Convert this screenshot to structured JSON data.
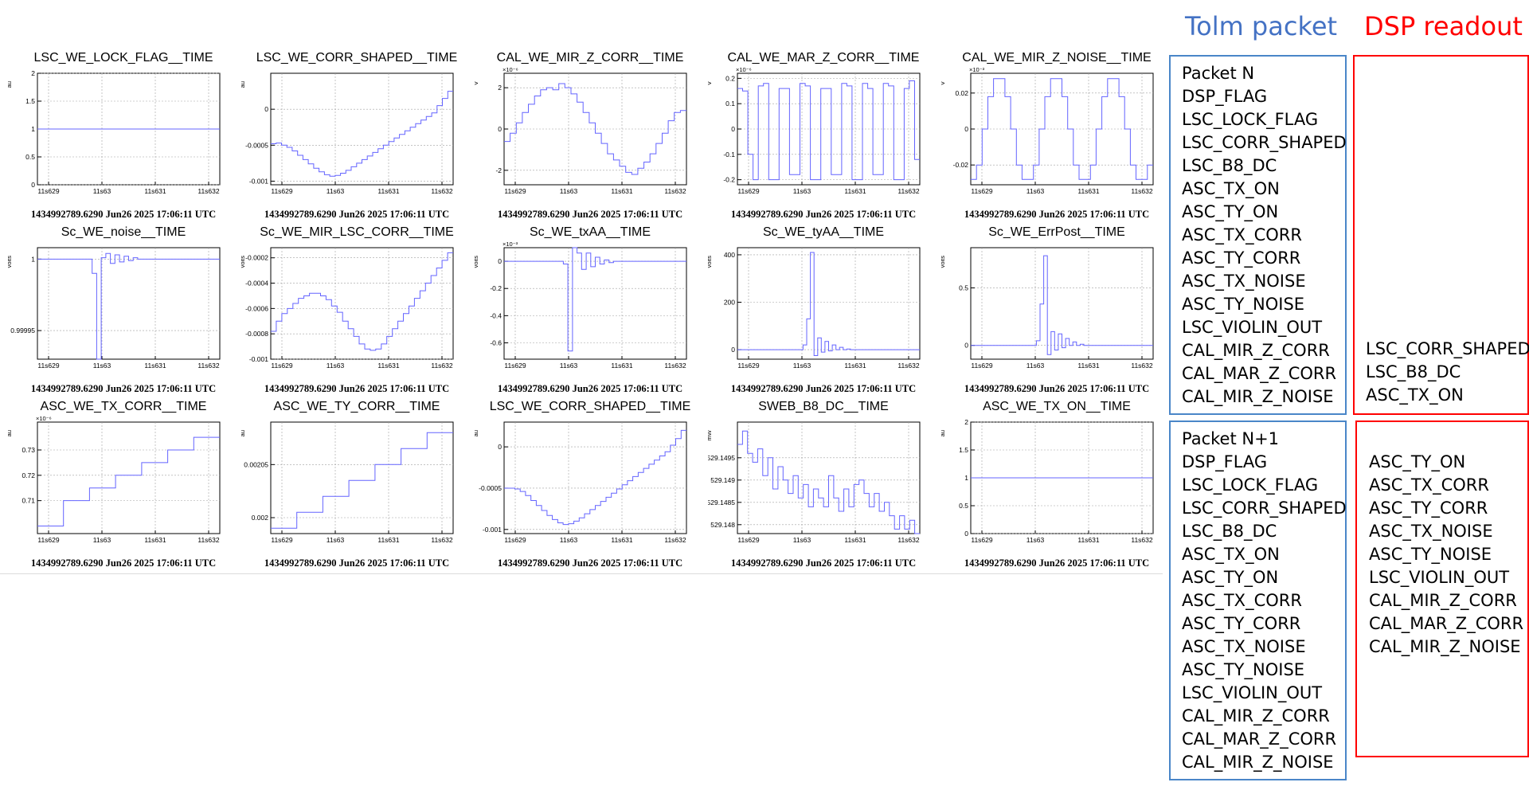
{
  "chart_data": [
    {
      "type": "line",
      "title": "LSC_WE_LOCK_FLAG__TIME",
      "ylabel": "au",
      "y_exponent": "",
      "ylim": [
        0,
        2
      ],
      "yticks": [
        0,
        0.5,
        1,
        1.5,
        2
      ],
      "ytick_labels": [
        "0",
        "0.5",
        "1",
        "1.5",
        "2"
      ],
      "xticks": [
        "11s629",
        "11s63",
        "11s631",
        "11s632"
      ],
      "footer": "1434992789.6290 Jun26 2025 17:06:11 UTC",
      "series": [
        {
          "values": [
            1,
            1,
            1,
            1,
            1,
            1,
            1,
            1,
            1,
            1,
            1,
            1,
            1,
            1,
            1,
            1,
            1,
            1,
            1,
            1,
            1,
            1,
            1,
            1,
            1,
            1,
            1,
            1,
            1,
            1,
            1,
            1,
            1,
            1,
            1,
            1,
            1,
            1,
            1,
            1,
            1,
            1,
            1,
            1,
            1,
            1,
            1,
            1,
            1,
            1
          ]
        }
      ]
    },
    {
      "type": "line",
      "title": "LSC_WE_CORR_SHAPED__TIME",
      "ylabel": "au",
      "y_exponent": "",
      "ylim": [
        -0.00105,
        0.0005
      ],
      "yticks": [
        -0.001,
        -0.0005,
        0
      ],
      "ytick_labels": [
        "-0.001",
        "-0.0005",
        "0"
      ],
      "xticks": [
        "11s629",
        "11s63",
        "11s631",
        "11s632"
      ],
      "footer": "1434992789.6290 Jun26 2025 17:06:11 UTC",
      "series": [
        {
          "values": [
            -0.00048,
            -0.00047,
            -0.0005,
            -0.00053,
            -0.00058,
            -0.00064,
            -0.0007,
            -0.00076,
            -0.00082,
            -0.00087,
            -0.00091,
            -0.00093,
            -0.00092,
            -0.00089,
            -0.00085,
            -0.0008,
            -0.00075,
            -0.0007,
            -0.00065,
            -0.0006,
            -0.00055,
            -0.0005,
            -0.00045,
            -0.0004,
            -0.00035,
            -0.0003,
            -0.00025,
            -0.0002,
            -0.00015,
            -0.0001,
            -5e-05,
            5e-05,
            0.00015,
            0.00025
          ]
        }
      ]
    },
    {
      "type": "line",
      "title": "CAL_WE_MIR_Z_CORR__TIME",
      "ylabel": "V",
      "y_exponent": "×10⁻⁶",
      "ylim": [
        -2.7,
        2.7
      ],
      "yticks": [
        -2,
        0,
        2
      ],
      "ytick_labels": [
        "-2",
        "0",
        "2"
      ],
      "xticks": [
        "11s629",
        "11s63",
        "11s631",
        "11s632"
      ],
      "footer": "1434992789.6290 Jun26 2025 17:06:11 UTC",
      "series": [
        {
          "values": [
            -0.6,
            -0.2,
            0.3,
            0.8,
            1.2,
            1.6,
            1.9,
            2.0,
            1.9,
            2.2,
            2.0,
            1.7,
            1.3,
            0.8,
            0.3,
            -0.2,
            -0.7,
            -1.2,
            -1.5,
            -1.8,
            -2.1,
            -2.2,
            -1.9,
            -1.6,
            -1.2,
            -0.7,
            -0.2,
            0.4,
            0.8,
            0.9
          ]
        }
      ]
    },
    {
      "type": "line",
      "title": "CAL_WE_MAR_Z_CORR__TIME",
      "ylabel": "V",
      "y_exponent": "×10⁻⁶",
      "ylim": [
        -0.22,
        0.22
      ],
      "yticks": [
        -0.2,
        -0.1,
        0,
        0.1,
        0.2
      ],
      "ytick_labels": [
        "-0.2",
        "-0.1",
        "0",
        "0.1",
        "0.2"
      ],
      "xticks": [
        "11s629",
        "11s63",
        "11s631",
        "11s632"
      ],
      "footer": "1434992789.6290 Jun26 2025 17:06:11 UTC",
      "series": [
        {
          "values": [
            0.16,
            0.15,
            -0.1,
            -0.2,
            0.17,
            0.18,
            -0.2,
            -0.2,
            0.16,
            0.16,
            -0.18,
            -0.18,
            0.18,
            0.17,
            -0.2,
            -0.2,
            0.16,
            0.16,
            -0.18,
            -0.18,
            0.18,
            0.17,
            -0.2,
            -0.2,
            0.18,
            0.16,
            -0.18,
            -0.18,
            0.18,
            0.17,
            -0.2,
            -0.2,
            0.16,
            0.19,
            -0.12
          ]
        }
      ]
    },
    {
      "type": "line",
      "title": "CAL_WE_MIR_Z_NOISE__TIME",
      "ylabel": "V",
      "y_exponent": "×10⁻³",
      "ylim": [
        -0.031,
        0.031
      ],
      "yticks": [
        -0.02,
        0,
        0.02
      ],
      "ytick_labels": [
        "-0.02",
        "0",
        "0.02"
      ],
      "xticks": [
        "11s629",
        "11s63",
        "11s631",
        "11s632"
      ],
      "footer": "1434992789.6290 Jun26 2025 17:06:11 UTC",
      "series": [
        {
          "values": [
            -0.028,
            -0.02,
            0.0,
            0.018,
            0.028,
            0.028,
            0.018,
            0.0,
            -0.02,
            -0.028,
            -0.028,
            -0.02,
            0.0,
            0.018,
            0.028,
            0.028,
            0.018,
            0.0,
            -0.02,
            -0.028,
            -0.028,
            -0.02,
            0.0,
            0.018,
            0.028,
            0.028,
            0.018,
            0.0,
            -0.02,
            -0.028,
            -0.028,
            -0.02
          ]
        }
      ]
    },
    {
      "type": "line",
      "title": "Sc_WE_noise__TIME",
      "ylabel": "volts",
      "y_exponent": "",
      "ylim": [
        0.99993,
        1.000008
      ],
      "yticks": [
        0.99995,
        1
      ],
      "ytick_labels": [
        "0.99995",
        "1"
      ],
      "xticks": [
        "11s629",
        "11s63",
        "11s631",
        "11s632"
      ],
      "footer": "1434992789.6290 Jun26 2025 17:06:11 UTC",
      "series": [
        {
          "values": [
            1,
            1,
            1,
            1,
            1,
            1,
            1,
            1,
            1,
            1,
            1,
            1,
            0.99999,
            0.99993,
            1.000001,
            1.000004,
            0.999997,
            1.000003,
            0.999998,
            1.000002,
            0.999999,
            1.000001,
            1,
            1,
            1,
            1,
            1,
            1,
            1,
            1,
            1,
            1,
            1,
            1,
            1,
            1,
            1,
            1,
            1,
            1
          ]
        }
      ]
    },
    {
      "type": "line",
      "title": "Sc_WE_MIR_LSC_CORR__TIME",
      "ylabel": "volts",
      "y_exponent": "",
      "ylim": [
        -0.001,
        -0.00012
      ],
      "yticks": [
        -0.001,
        -0.0008,
        -0.0006,
        -0.0004,
        -0.0002
      ],
      "ytick_labels": [
        "-0.001",
        "-0.0008",
        "-0.0006",
        "-0.0004",
        "-0.0002"
      ],
      "xticks": [
        "11s629",
        "11s63",
        "11s631",
        "11s632"
      ],
      "footer": "1434992789.6290 Jun26 2025 17:06:11 UTC",
      "series": [
        {
          "values": [
            -0.00078,
            -0.0007,
            -0.00064,
            -0.0006,
            -0.00056,
            -0.00052,
            -0.0005,
            -0.00048,
            -0.00048,
            -0.0005,
            -0.00053,
            -0.00058,
            -0.00063,
            -0.0007,
            -0.00076,
            -0.00082,
            -0.00088,
            -0.00092,
            -0.00093,
            -0.00092,
            -0.00088,
            -0.00082,
            -0.00076,
            -0.0007,
            -0.00064,
            -0.00058,
            -0.00052,
            -0.00046,
            -0.0004,
            -0.00034,
            -0.00028,
            -0.00022,
            -0.00016
          ]
        }
      ]
    },
    {
      "type": "line",
      "title": "Sc_WE_txAA__TIME",
      "ylabel": "volts",
      "y_exponent": "×10⁻³",
      "ylim": [
        -0.72,
        0.1
      ],
      "yticks": [
        -0.6,
        -0.4,
        -0.2,
        0
      ],
      "ytick_labels": [
        "-0.6",
        "-0.4",
        "-0.2",
        "0"
      ],
      "xticks": [
        "11s629",
        "11s63",
        "11s631",
        "11s632"
      ],
      "footer": "1434992789.6290 Jun26 2025 17:06:11 UTC",
      "series": [
        {
          "values": [
            0,
            0,
            0,
            0,
            0,
            0,
            0,
            0,
            0,
            0,
            0,
            0,
            0,
            -0.02,
            -0.66,
            0.1,
            0.06,
            -0.06,
            0.06,
            -0.04,
            0.03,
            -0.02,
            0.01,
            -0.01,
            0,
            0,
            0,
            0,
            0,
            0,
            0,
            0,
            0,
            0,
            0,
            0,
            0,
            0,
            0,
            0
          ]
        }
      ]
    },
    {
      "type": "line",
      "title": "Sc_WE_tyAA__TIME",
      "ylabel": "volts",
      "y_exponent": "",
      "ylim": [
        -40,
        430
      ],
      "yticks": [
        0,
        200,
        400
      ],
      "ytick_labels": [
        "0",
        "200",
        "400"
      ],
      "xticks": [
        "11s629",
        "11s63",
        "11s631",
        "11s632"
      ],
      "footer": "1434992789.6290 Jun26 2025 17:06:11 UTC",
      "series": [
        {
          "values": [
            0,
            0,
            0,
            0,
            0,
            0,
            0,
            0,
            0,
            0,
            0,
            0,
            0,
            0,
            0,
            0,
            0,
            0,
            20,
            130,
            410,
            -25,
            50,
            -10,
            35,
            -5,
            20,
            0,
            10,
            0,
            3,
            0,
            0,
            0,
            0,
            0,
            0,
            0,
            0,
            0,
            0,
            0,
            0,
            0,
            0,
            0,
            0,
            0,
            0,
            0
          ]
        }
      ]
    },
    {
      "type": "line",
      "title": "Sc_WE_ErrPost__TIME",
      "ylabel": "volts",
      "y_exponent": "",
      "ylim": [
        -0.12,
        0.85
      ],
      "yticks": [
        0,
        0.5
      ],
      "ytick_labels": [
        "0",
        "0.5"
      ],
      "xticks": [
        "11s629",
        "11s63",
        "11s631",
        "11s632"
      ],
      "footer": "1434992789.6290 Jun26 2025 17:06:11 UTC",
      "series": [
        {
          "values": [
            0,
            0,
            0,
            0,
            0,
            0,
            0,
            0,
            0,
            0,
            0,
            0,
            0,
            0,
            0,
            0,
            0,
            0,
            0.04,
            0.36,
            0.78,
            -0.08,
            0.12,
            -0.04,
            0.1,
            -0.02,
            0.06,
            0,
            0.03,
            0,
            0.01,
            0,
            0,
            0,
            0,
            0,
            0,
            0,
            0,
            0,
            0,
            0,
            0,
            0,
            0,
            0,
            0,
            0,
            0,
            0
          ]
        }
      ]
    },
    {
      "type": "line",
      "title": "ASC_WE_TX_CORR__TIME",
      "ylabel": "au",
      "y_exponent": "×10⁻⁶",
      "ylim": [
        0.697,
        0.741
      ],
      "yticks": [
        0.71,
        0.72,
        0.73
      ],
      "ytick_labels": [
        "0.71",
        "0.72",
        "0.73"
      ],
      "xticks": [
        "11s629",
        "11s63",
        "11s631",
        "11s632"
      ],
      "footer": "1434992789.6290 Jun26 2025 17:06:11 UTC",
      "series": [
        {
          "values": [
            0.7,
            0.7,
            0.7,
            0.7,
            0.71,
            0.71,
            0.71,
            0.71,
            0.715,
            0.715,
            0.715,
            0.715,
            0.72,
            0.72,
            0.72,
            0.72,
            0.725,
            0.725,
            0.725,
            0.725,
            0.73,
            0.73,
            0.73,
            0.73,
            0.735,
            0.735,
            0.735,
            0.735
          ]
        }
      ]
    },
    {
      "type": "line",
      "title": "ASC_WE_TY_CORR__TIME",
      "ylabel": "au",
      "y_exponent": "",
      "ylim": [
        0.001985,
        0.00209
      ],
      "yticks": [
        0.002,
        0.00205
      ],
      "ytick_labels": [
        "0.002",
        "0.00205"
      ],
      "xticks": [
        "11s629",
        "11s63",
        "11s631",
        "11s632"
      ],
      "footer": "1434992789.6290 Jun26 2025 17:06:11 UTC",
      "series": [
        {
          "values": [
            0.00199,
            0.00199,
            0.00199,
            0.00199,
            0.002005,
            0.002005,
            0.002005,
            0.002005,
            0.00202,
            0.00202,
            0.00202,
            0.00202,
            0.002035,
            0.002035,
            0.002035,
            0.002035,
            0.00205,
            0.00205,
            0.00205,
            0.00205,
            0.002065,
            0.002065,
            0.002065,
            0.002065,
            0.00208,
            0.00208,
            0.00208,
            0.00208
          ]
        }
      ]
    },
    {
      "type": "line",
      "title": "LSC_WE_CORR_SHAPED__TIME",
      "ylabel": "au",
      "y_exponent": "",
      "ylim": [
        -0.00105,
        0.0003
      ],
      "yticks": [
        -0.001,
        -0.0005,
        0
      ],
      "ytick_labels": [
        "-0.001",
        "-0.0005",
        "0"
      ],
      "xticks": [
        "11s629",
        "11s63",
        "11s631",
        "11s632"
      ],
      "footer": "1434992789.6290 Jun26 2025 17:06:11 UTC",
      "series": [
        {
          "values": [
            -0.0005,
            -0.0005,
            -0.00051,
            -0.00054,
            -0.00059,
            -0.00065,
            -0.00071,
            -0.00077,
            -0.00083,
            -0.00088,
            -0.00092,
            -0.00094,
            -0.00093,
            -0.0009,
            -0.00086,
            -0.00081,
            -0.00076,
            -0.00071,
            -0.00066,
            -0.00061,
            -0.00056,
            -0.00051,
            -0.00046,
            -0.00041,
            -0.00036,
            -0.00031,
            -0.00026,
            -0.00021,
            -0.00016,
            -0.00011,
            -6e-05,
            2e-05,
            0.0001,
            0.0002
          ]
        }
      ]
    },
    {
      "type": "line",
      "title": "SWEB_B8_DC__TIME",
      "ylabel": "mW",
      "y_exponent": "",
      "ylim": [
        529.1478,
        529.1503
      ],
      "yticks": [
        529.148,
        529.1485,
        529.149,
        529.1495
      ],
      "ytick_labels": [
        "529.148",
        "529.1485",
        "529.149",
        "529.1495"
      ],
      "xticks": [
        "11s629",
        "11s63",
        "11s631",
        "11s632"
      ],
      "footer": "1434992789.6290 Jun26 2025 17:06:11 UTC",
      "series": [
        {
          "values": [
            529.1498,
            529.1501,
            529.1496,
            529.1494,
            529.1497,
            529.1491,
            529.1495,
            529.1488,
            529.1493,
            529.149,
            529.1487,
            529.1491,
            529.1486,
            529.1489,
            529.1484,
            529.1488,
            529.1486,
            529.1484,
            529.1491,
            529.1486,
            529.1483,
            529.1488,
            529.1484,
            529.1489,
            529.149,
            529.1487,
            529.1484,
            529.1487,
            529.1483,
            529.1485,
            529.1482,
            529.1479,
            529.1482,
            529.1479,
            529.1481,
            529.1477
          ]
        }
      ]
    },
    {
      "type": "line",
      "title": "ASC_WE_TX_ON__TIME",
      "ylabel": "au",
      "y_exponent": "",
      "ylim": [
        0,
        2
      ],
      "yticks": [
        0,
        0.5,
        1,
        1.5,
        2
      ],
      "ytick_labels": [
        "0",
        "0.5",
        "1",
        "1.5",
        "2"
      ],
      "xticks": [
        "11s629",
        "11s63",
        "11s631",
        "11s632"
      ],
      "footer": "1434992789.6290 Jun26 2025 17:06:11 UTC",
      "series": [
        {
          "values": [
            1,
            1,
            1,
            1,
            1,
            1,
            1,
            1,
            1,
            1,
            1,
            1,
            1,
            1,
            1,
            1,
            1,
            1,
            1,
            1,
            1,
            1,
            1,
            1,
            1,
            1,
            1,
            1,
            1,
            1,
            1,
            1,
            1,
            1,
            1,
            1,
            1,
            1,
            1,
            1,
            1,
            1,
            1,
            1,
            1,
            1,
            1,
            1,
            1,
            1
          ]
        }
      ]
    }
  ],
  "legend": {
    "tolm_title": "Tolm packet",
    "dsp_title": "DSP readout",
    "tolm_color": "#4472c4",
    "dsp_color": "#ff0000",
    "plot_line_color": "#6464ff",
    "packet_n": [
      "Packet N",
      "DSP_FLAG",
      "LSC_LOCK_FLAG",
      "LSC_CORR_SHAPED",
      "LSC_B8_DC",
      "ASC_TX_ON",
      "ASC_TY_ON",
      "ASC_TX_CORR",
      "ASC_TY_CORR",
      "ASC_TX_NOISE",
      "ASC_TY_NOISE",
      "LSC_VIOLIN_OUT",
      "CAL_MIR_Z_CORR",
      "CAL_MAR_Z_CORR",
      "CAL_MIR_Z_NOISE"
    ],
    "packet_n1": [
      "Packet N+1",
      "DSP_FLAG",
      "LSC_LOCK_FLAG",
      "LSC_CORR_SHAPED",
      "LSC_B8_DC",
      "ASC_TX_ON",
      "ASC_TY_ON",
      "ASC_TX_CORR",
      "ASC_TY_CORR",
      "ASC_TX_NOISE",
      "ASC_TY_NOISE",
      "LSC_VIOLIN_OUT",
      "CAL_MIR_Z_CORR",
      "CAL_MAR_Z_CORR",
      "CAL_MIR_Z_NOISE"
    ],
    "dsp_n": [
      "LSC_CORR_SHAPED",
      "LSC_B8_DC",
      "ASC_TX_ON"
    ],
    "dsp_n1": [
      "ASC_TY_ON",
      "ASC_TX_CORR",
      "ASC_TY_CORR",
      "ASC_TX_NOISE",
      "ASC_TY_NOISE",
      "LSC_VIOLIN_OUT",
      "CAL_MIR_Z_CORR",
      "CAL_MAR_Z_CORR",
      "CAL_MIR_Z_NOISE"
    ]
  }
}
